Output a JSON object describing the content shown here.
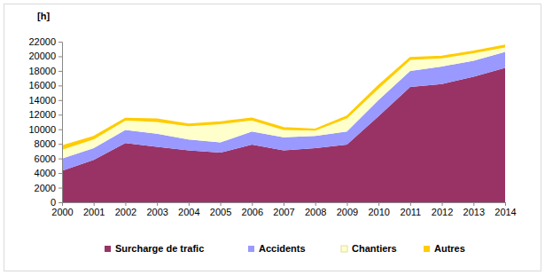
{
  "chart_data": {
    "type": "stacked_area",
    "stacked": true,
    "ylabel": "[h]",
    "x": [
      2000,
      2001,
      2002,
      2003,
      2004,
      2005,
      2006,
      2007,
      2008,
      2009,
      2010,
      2011,
      2012,
      2013,
      2014
    ],
    "xlim": [
      2000,
      2014
    ],
    "xticks": [
      2000,
      2001,
      2002,
      2003,
      2004,
      2005,
      2006,
      2007,
      2008,
      2009,
      2010,
      2011,
      2012,
      2013,
      2014
    ],
    "ylim": [
      0,
      22000
    ],
    "yticks": [
      0,
      2000,
      4000,
      6000,
      8000,
      10000,
      12000,
      14000,
      16000,
      18000,
      20000,
      22000
    ],
    "legend": "bottom",
    "series": [
      {
        "name": "Surcharge de trafic",
        "color": "#993366",
        "values": [
          4300,
          5800,
          8100,
          7600,
          7100,
          6800,
          7900,
          7100,
          7400,
          7900,
          11800,
          15800,
          16200,
          17200,
          18400
        ]
      },
      {
        "name": "Accidents",
        "color": "#9999ff",
        "values": [
          1700,
          1600,
          1800,
          1800,
          1500,
          1400,
          1800,
          1800,
          1700,
          1800,
          2200,
          2200,
          2400,
          2200,
          2200
        ]
      },
      {
        "name": "Chantiers",
        "color": "#ffffcc",
        "values": [
          1300,
          1300,
          1400,
          1700,
          1900,
          2600,
          1600,
          1100,
          800,
          1900,
          1700,
          1600,
          1200,
          1100,
          700
        ]
      },
      {
        "name": "Autres",
        "color": "#ffcc00",
        "values": [
          400,
          300,
          200,
          300,
          200,
          200,
          200,
          200,
          100,
          200,
          300,
          200,
          200,
          200,
          200
        ]
      }
    ]
  }
}
